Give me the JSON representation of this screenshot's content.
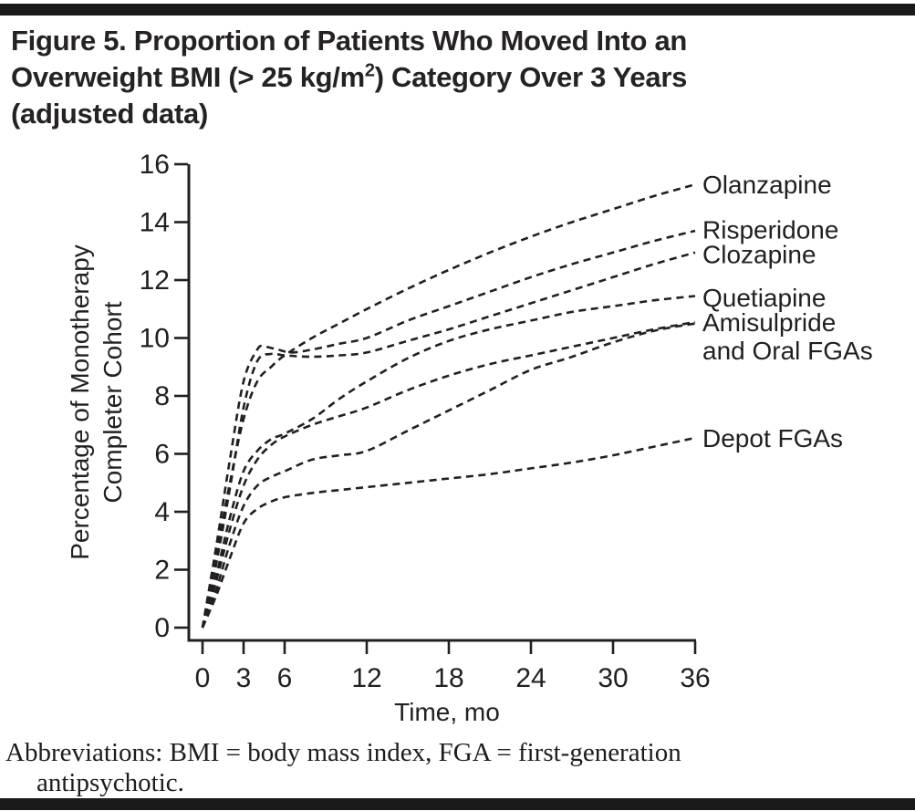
{
  "figure": {
    "title_line1": "Figure 5. Proportion of Patients Who Moved Into an",
    "title_line2_pre": "Overweight BMI (> 25 kg/m",
    "title_sup": "2",
    "title_line2_post": ") Category Over 3 Years",
    "title_line3": "(adjusted data)",
    "footnote_line1": "Abbreviations: BMI = body mass index, FGA = first-generation",
    "footnote_line2": "antipsychotic."
  },
  "chart_data": {
    "type": "line",
    "title": "Figure 5. Proportion of Patients Who Moved Into an Overweight BMI (> 25 kg/m2) Category Over 3 Years (adjusted data)",
    "xlabel": "Time, mo",
    "ylabel_line1": "Percentage of Monotherapy",
    "ylabel_line2": "Completer Cohort",
    "xlim": [
      0,
      36
    ],
    "ylim": [
      0,
      16
    ],
    "x_ticks": [
      0,
      3,
      6,
      12,
      18,
      24,
      30,
      36
    ],
    "y_ticks": [
      0,
      2,
      4,
      6,
      8,
      10,
      12,
      14,
      16
    ],
    "grid": false,
    "legend_position": "right-of-curve-ends",
    "line_style": "dashed",
    "line_color": "#231f20",
    "series": [
      {
        "name": "Olanzapine",
        "points": [
          [
            0,
            0
          ],
          [
            1,
            2.5
          ],
          [
            2,
            5.0
          ],
          [
            3,
            7.2
          ],
          [
            4,
            8.5
          ],
          [
            5,
            9.0
          ],
          [
            6,
            9.4
          ],
          [
            8,
            10.0
          ],
          [
            10,
            10.5
          ],
          [
            12,
            11.0
          ],
          [
            15,
            11.7
          ],
          [
            18,
            12.35
          ],
          [
            21,
            12.95
          ],
          [
            24,
            13.5
          ],
          [
            27,
            14.0
          ],
          [
            30,
            14.45
          ],
          [
            33,
            14.9
          ],
          [
            36,
            15.3
          ]
        ]
      },
      {
        "name": "Risperidone",
        "points": [
          [
            0,
            0
          ],
          [
            1,
            2.8
          ],
          [
            2,
            5.8
          ],
          [
            3,
            8.5
          ],
          [
            4,
            9.6
          ],
          [
            4.5,
            9.7
          ],
          [
            5.5,
            9.6
          ],
          [
            6.5,
            9.5
          ],
          [
            8,
            9.6
          ],
          [
            10,
            9.8
          ],
          [
            12,
            10.0
          ],
          [
            15,
            10.6
          ],
          [
            18,
            11.1
          ],
          [
            21,
            11.6
          ],
          [
            24,
            12.1
          ],
          [
            27,
            12.55
          ],
          [
            30,
            12.95
          ],
          [
            33,
            13.35
          ],
          [
            36,
            13.7
          ]
        ]
      },
      {
        "name": "Clozapine",
        "points": [
          [
            0,
            0
          ],
          [
            1,
            2.2
          ],
          [
            2,
            4.8
          ],
          [
            3,
            7.6
          ],
          [
            4,
            9.2
          ],
          [
            5,
            9.45
          ],
          [
            6,
            9.4
          ],
          [
            8,
            9.35
          ],
          [
            10,
            9.4
          ],
          [
            12,
            9.5
          ],
          [
            15,
            9.9
          ],
          [
            18,
            10.3
          ],
          [
            21,
            10.75
          ],
          [
            24,
            11.2
          ],
          [
            27,
            11.65
          ],
          [
            30,
            12.1
          ],
          [
            33,
            12.55
          ],
          [
            36,
            12.95
          ]
        ]
      },
      {
        "name": "Quetiapine",
        "points": [
          [
            0,
            0
          ],
          [
            1,
            1.8
          ],
          [
            2,
            3.8
          ],
          [
            3,
            5.4
          ],
          [
            4,
            6.1
          ],
          [
            5,
            6.5
          ],
          [
            6,
            6.7
          ],
          [
            8,
            7.2
          ],
          [
            10,
            7.9
          ],
          [
            12,
            8.5
          ],
          [
            15,
            9.3
          ],
          [
            18,
            9.9
          ],
          [
            21,
            10.3
          ],
          [
            24,
            10.6
          ],
          [
            27,
            10.9
          ],
          [
            30,
            11.1
          ],
          [
            33,
            11.3
          ],
          [
            36,
            11.45
          ]
        ]
      },
      {
        "name": "Amisulpride",
        "points": [
          [
            0,
            0
          ],
          [
            1,
            1.6
          ],
          [
            2,
            3.4
          ],
          [
            3,
            4.9
          ],
          [
            4,
            5.8
          ],
          [
            5,
            6.3
          ],
          [
            6,
            6.6
          ],
          [
            8,
            7.0
          ],
          [
            10,
            7.3
          ],
          [
            12,
            7.6
          ],
          [
            15,
            8.2
          ],
          [
            18,
            8.7
          ],
          [
            21,
            9.1
          ],
          [
            24,
            9.4
          ],
          [
            27,
            9.7
          ],
          [
            30,
            10.0
          ],
          [
            33,
            10.3
          ],
          [
            36,
            10.55
          ]
        ]
      },
      {
        "name": "Oral FGAs",
        "points": [
          [
            0,
            0
          ],
          [
            1,
            1.3
          ],
          [
            2,
            2.9
          ],
          [
            3,
            4.2
          ],
          [
            4,
            4.9
          ],
          [
            5,
            5.2
          ],
          [
            6,
            5.4
          ],
          [
            8,
            5.8
          ],
          [
            10,
            5.95
          ],
          [
            12,
            6.1
          ],
          [
            15,
            6.8
          ],
          [
            18,
            7.5
          ],
          [
            21,
            8.2
          ],
          [
            24,
            8.9
          ],
          [
            27,
            9.35
          ],
          [
            30,
            9.85
          ],
          [
            33,
            10.25
          ],
          [
            36,
            10.5
          ]
        ]
      },
      {
        "name": "Depot FGAs",
        "points": [
          [
            0,
            0
          ],
          [
            1,
            1.1
          ],
          [
            2,
            2.4
          ],
          [
            3,
            3.6
          ],
          [
            4,
            4.1
          ],
          [
            5,
            4.35
          ],
          [
            6,
            4.5
          ],
          [
            8,
            4.65
          ],
          [
            10,
            4.75
          ],
          [
            12,
            4.85
          ],
          [
            15,
            5.0
          ],
          [
            18,
            5.15
          ],
          [
            21,
            5.3
          ],
          [
            24,
            5.5
          ],
          [
            27,
            5.7
          ],
          [
            30,
            5.95
          ],
          [
            33,
            6.25
          ],
          [
            36,
            6.55
          ]
        ]
      }
    ],
    "labels": [
      {
        "lines": [
          "Olanzapine"
        ],
        "at_pct": 15.3
      },
      {
        "lines": [
          "Risperidone"
        ],
        "at_pct": 13.75
      },
      {
        "lines": [
          "Clozapine"
        ],
        "at_pct": 12.9
      },
      {
        "lines": [
          "Quetiapine"
        ],
        "at_pct": 11.4
      },
      {
        "lines": [
          "Amisulpride",
          "and Oral FGAs"
        ],
        "at_pct": 10.55
      },
      {
        "lines": [
          "Depot FGAs"
        ],
        "at_pct": 6.55
      }
    ]
  }
}
